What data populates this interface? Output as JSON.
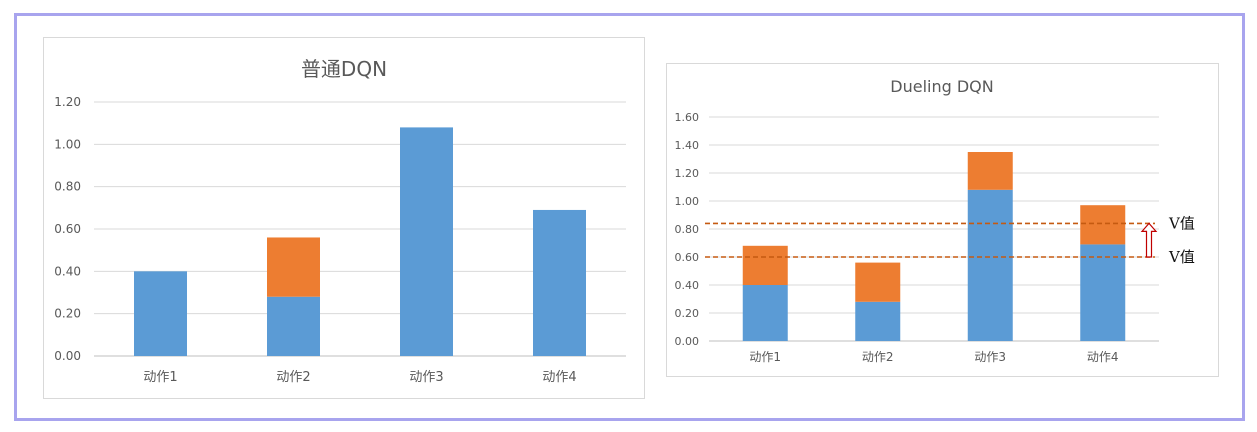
{
  "chart_data": [
    {
      "type": "bar",
      "stacked": true,
      "title": "普通DQN",
      "categories": [
        "动作1",
        "动作2",
        "动作3",
        "动作4"
      ],
      "series": [
        {
          "values": [
            0.4,
            0.28,
            1.08,
            0.69
          ],
          "color": "#5b9bd5"
        },
        {
          "values": [
            0,
            0.28,
            0,
            0
          ],
          "color": "#ed7d31"
        }
      ],
      "ylim": [
        0,
        1.2
      ],
      "yticks": [
        "0.00",
        "0.20",
        "0.40",
        "0.60",
        "0.80",
        "1.00",
        "1.20"
      ],
      "grid": true
    },
    {
      "type": "bar",
      "stacked": true,
      "title": "Dueling DQN",
      "categories": [
        "动作1",
        "动作2",
        "动作3",
        "动作4"
      ],
      "series": [
        {
          "values": [
            0.4,
            0.28,
            1.08,
            0.69
          ],
          "color": "#5b9bd5"
        },
        {
          "values": [
            0.28,
            0.28,
            0.27,
            0.28
          ],
          "color": "#ed7d31"
        }
      ],
      "ylim": [
        0,
        1.6
      ],
      "yticks": [
        "0.00",
        "0.20",
        "0.40",
        "0.60",
        "0.80",
        "1.00",
        "1.20",
        "1.40",
        "1.60"
      ],
      "grid": true,
      "reference_lines": [
        {
          "y": 0.84,
          "label": "V值",
          "color": "#c55a11"
        },
        {
          "y": 0.6,
          "label": "V值",
          "color": "#c55a11"
        }
      ],
      "arrow": {
        "from": 0.6,
        "to": 0.84,
        "direction": "up",
        "color": "#c00000"
      }
    }
  ]
}
